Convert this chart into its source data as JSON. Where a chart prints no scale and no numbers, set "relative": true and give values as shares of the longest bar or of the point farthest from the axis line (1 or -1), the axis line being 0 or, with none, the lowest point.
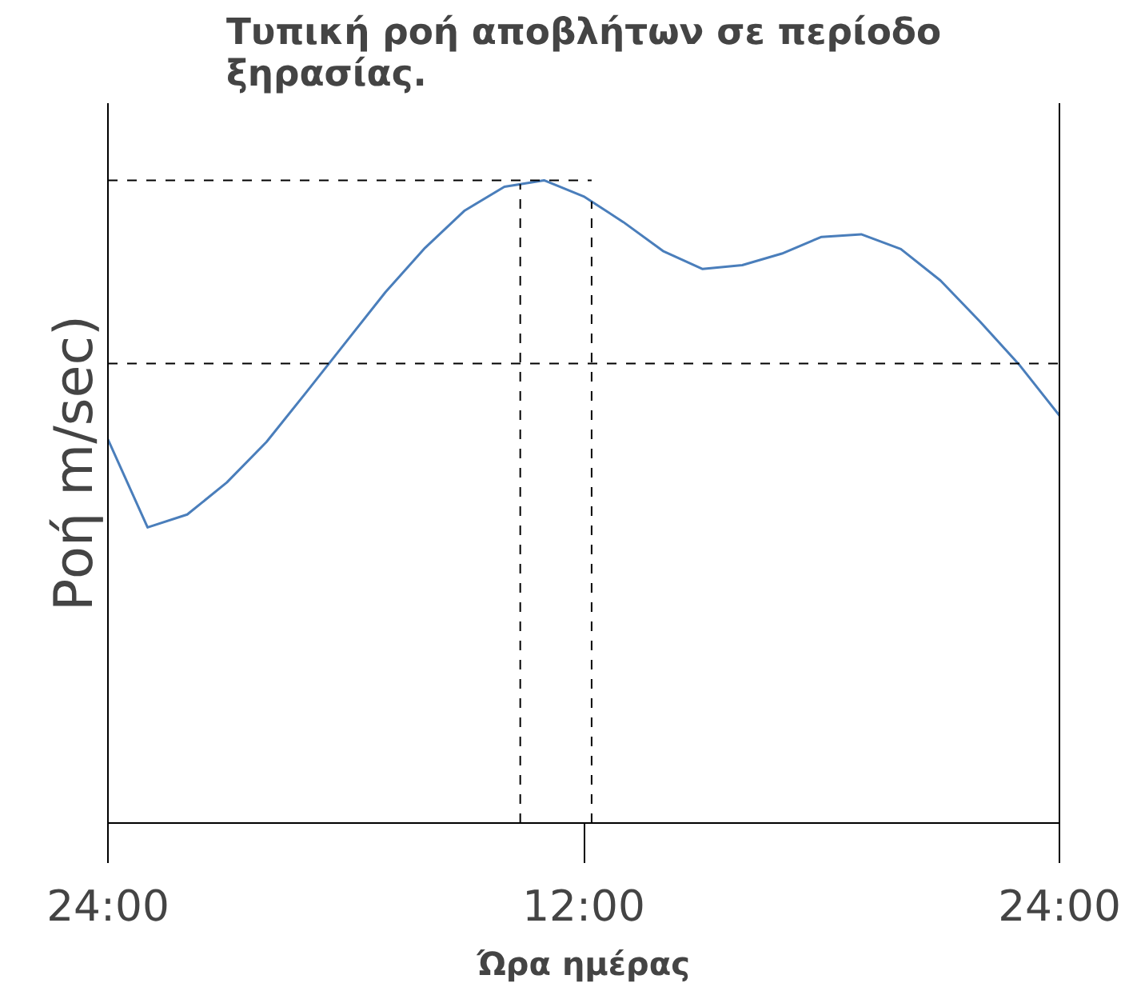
{
  "chart_data": {
    "type": "line",
    "title": "Τυπική ροή αποβλήτων σε περίοδο ξηρασίας.",
    "xlabel": "Ώρα ημέρας",
    "ylabel": "Ροή m/sec)",
    "relative": true,
    "grid": false,
    "marker": "none",
    "line_style": "solid",
    "categories": [
      "24:00",
      null,
      null,
      null,
      null,
      null,
      null,
      null,
      null,
      null,
      null,
      null,
      "12:00",
      null,
      null,
      null,
      null,
      null,
      null,
      null,
      null,
      null,
      null,
      null,
      "24:00"
    ],
    "series": [
      {
        "color": "#4a7ebb",
        "values": [
          0.597,
          0.46,
          0.48,
          0.53,
          0.593,
          0.67,
          0.748,
          0.826,
          0.895,
          0.953,
          0.99,
          1,
          0.975,
          0.935,
          0.89,
          0.862,
          0.868,
          0.886,
          0.912,
          0.916,
          0.893,
          0.844,
          0.78,
          0.712,
          0.634
        ]
      }
    ]
  }
}
